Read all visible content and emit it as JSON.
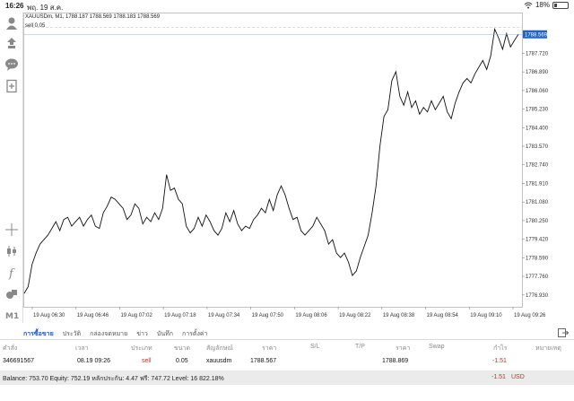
{
  "statusbar": {
    "time": "16:26",
    "date": "พฤ. 19 ส.ค.",
    "battery": "18%",
    "battery_level": 0.18,
    "wifi_icon": "wifi-icon"
  },
  "chart_info": {
    "line1": "XAUUSDm, M1, 1788.187 1788.569 1788.183 1788.569",
    "line2": "sell 0.05"
  },
  "chart_data": {
    "type": "line",
    "symbol": "XAUUSDm",
    "timeframe": "M1",
    "ylim": [
      1776.4,
      1789.3
    ],
    "yticks": [
      "1787.720",
      "1786.890",
      "1786.060",
      "1785.230",
      "1784.400",
      "1783.570",
      "1782.740",
      "1781.910",
      "1781.080",
      "1780.250",
      "1779.420",
      "1778.590",
      "1777.760",
      "1776.930"
    ],
    "current_price": "1788.569",
    "trade_level": 1788.869,
    "xticks": [
      "19 Aug 06:30",
      "19 Aug 06:46",
      "19 Aug 07:02",
      "19 Aug 07:18",
      "19 Aug 07:34",
      "19 Aug 07:50",
      "19 Aug 08:06",
      "19 Aug 08:22",
      "19 Aug 08:38",
      "19 Aug 08:54",
      "19 Aug 09:10",
      "19 Aug 09:26"
    ],
    "series": [
      {
        "values": [
          1777.0,
          1777.3,
          1778.3,
          1778.8,
          1779.2,
          1779.4,
          1779.6,
          1779.9,
          1780.2,
          1779.8,
          1780.3,
          1780.4,
          1780.0,
          1780.2,
          1780.4,
          1780.0,
          1780.3,
          1780.5,
          1780.0,
          1779.9,
          1780.6,
          1780.9,
          1781.3,
          1781.2,
          1781.0,
          1780.8,
          1780.3,
          1780.5,
          1781.0,
          1780.8,
          1780.1,
          1780.4,
          1780.2,
          1780.6,
          1780.3,
          1780.8,
          1782.3,
          1781.6,
          1781.7,
          1781.2,
          1781.0,
          1780.0,
          1779.7,
          1779.9,
          1780.4,
          1780.0,
          1780.5,
          1780.2,
          1779.8,
          1779.6,
          1779.9,
          1780.6,
          1780.2,
          1780.7,
          1780.1,
          1779.8,
          1780.0,
          1779.9,
          1780.3,
          1780.5,
          1780.8,
          1780.6,
          1781.2,
          1780.7,
          1781.4,
          1781.8,
          1781.4,
          1780.8,
          1780.3,
          1780.4,
          1779.8,
          1779.6,
          1779.8,
          1780.0,
          1780.4,
          1780.1,
          1779.8,
          1779.2,
          1779.4,
          1778.8,
          1778.6,
          1778.8,
          1778.4,
          1777.8,
          1778.0,
          1778.6,
          1779.1,
          1779.6,
          1780.6,
          1781.8,
          1783.6,
          1784.9,
          1785.2,
          1786.5,
          1786.9,
          1785.8,
          1785.4,
          1786.0,
          1785.3,
          1785.6,
          1785.0,
          1785.3,
          1785.1,
          1785.6,
          1785.2,
          1785.5,
          1785.8,
          1785.1,
          1784.8,
          1785.5,
          1786.0,
          1786.4,
          1786.6,
          1786.4,
          1786.8,
          1787.1,
          1787.4,
          1787.0,
          1787.6,
          1788.8,
          1788.4,
          1787.9,
          1788.6,
          1788.0,
          1788.3,
          1788.57
        ]
      }
    ]
  },
  "tabs": [
    {
      "label": "การซื้อขาย"
    },
    {
      "label": "ประวัติ"
    },
    {
      "label": "กล่องจดหมาย"
    },
    {
      "label": "ข่าว"
    },
    {
      "label": "บันทึก"
    },
    {
      "label": "การตั้งค่า"
    }
  ],
  "table": {
    "headers": [
      "คำสั่ง",
      "เวลา",
      "ประเภท",
      "ขนาด",
      "สัญลักษณ์",
      "ราคา",
      "S/L",
      "T/P",
      "ราคา",
      "Swap",
      "กำไร",
      "หมายเหตุ"
    ],
    "row": {
      "order": "346691567",
      "time": "08.19 09:26",
      "type": "sell",
      "size": "0.05",
      "symbol": "xauusdm",
      "price": "1788.567",
      "sl": "",
      "tp": "",
      "price2": "1788.869",
      "swap": "",
      "profit": "-1.51",
      "comment": ""
    }
  },
  "balance": {
    "text": "Balance: 753.70 Equity: 752.19 หลักประกัน: 4.47 ฟรี: 747.72 Level: 16 822.18%",
    "profit": "-1.51",
    "currency": "USD"
  },
  "colors": {
    "accent": "#1a56c8",
    "negative": "#d12b2b",
    "price_label_bg": "#1f63c7",
    "level_line": "#d24b4b"
  }
}
